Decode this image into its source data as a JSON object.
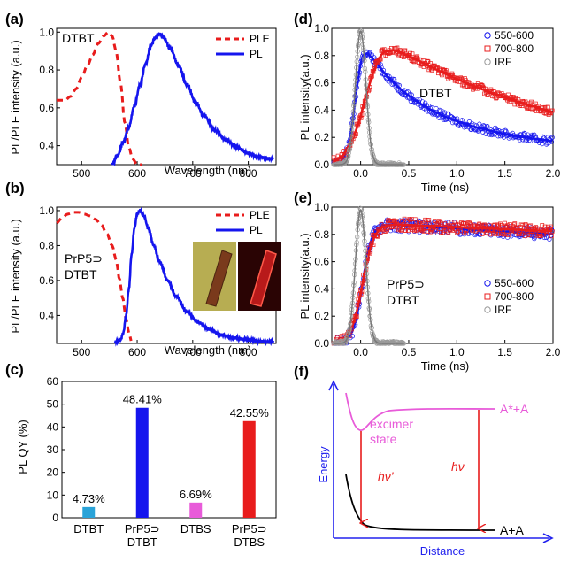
{
  "colors": {
    "blue": "#1515ee",
    "red": "#e81c1c",
    "gray": "#9a9a9a",
    "magenta": "#e85bd9",
    "cyan": "#2aa3d8",
    "axisblue": "#2222ee",
    "black": "#000000"
  },
  "chart_data": [
    {
      "id": "a",
      "panel_label": "(a)",
      "type": "line",
      "inner_label": [
        "DTBT"
      ],
      "xlabel": "Wavelength (nm)",
      "ylabel": "PL/PLE intensity (a.u.)",
      "xlim": [
        455,
        850
      ],
      "ylim": [
        0.3,
        1.02
      ],
      "xticks": [
        500,
        600,
        700,
        800
      ],
      "yticks": [
        0.4,
        0.6,
        0.8,
        1.0
      ],
      "legend_position": "top-right",
      "series": [
        {
          "name": "PLE",
          "style": "dashed",
          "color": "#e81c1c",
          "x": [
            455,
            470,
            480,
            490,
            500,
            510,
            520,
            530,
            540,
            548,
            555,
            562,
            570,
            578,
            585,
            592,
            600,
            610
          ],
          "y": [
            0.64,
            0.64,
            0.66,
            0.7,
            0.76,
            0.82,
            0.88,
            0.94,
            0.98,
            1.0,
            0.98,
            0.9,
            0.73,
            0.52,
            0.39,
            0.33,
            0.3,
            0.28
          ]
        },
        {
          "name": "PL",
          "style": "solid",
          "color": "#1515ee",
          "x": [
            555,
            565,
            575,
            585,
            595,
            605,
            615,
            625,
            632,
            640,
            648,
            660,
            675,
            690,
            705,
            720,
            740,
            760,
            780,
            800,
            820,
            845
          ],
          "y": [
            0.3,
            0.35,
            0.42,
            0.5,
            0.61,
            0.72,
            0.83,
            0.93,
            0.97,
            0.99,
            0.97,
            0.91,
            0.82,
            0.72,
            0.63,
            0.56,
            0.48,
            0.43,
            0.39,
            0.36,
            0.34,
            0.33
          ]
        }
      ]
    },
    {
      "id": "b",
      "panel_label": "(b)",
      "type": "line",
      "inner_label": [
        "PrP5⊃",
        "DTBT"
      ],
      "xlabel": "Wavelength (nm)",
      "ylabel": "PL/PLE intensity (a.u.)",
      "xlim": [
        455,
        850
      ],
      "ylim": [
        0.24,
        1.02
      ],
      "xticks": [
        500,
        600,
        700,
        800
      ],
      "yticks": [
        0.4,
        0.6,
        0.8,
        1.0
      ],
      "legend_position": "top-right",
      "series": [
        {
          "name": "PLE",
          "style": "dashed",
          "color": "#e81c1c",
          "x": [
            455,
            465,
            475,
            485,
            495,
            505,
            515,
            525,
            535,
            545,
            555,
            562,
            568,
            574,
            580,
            585,
            590
          ],
          "y": [
            0.93,
            0.96,
            0.98,
            0.99,
            0.99,
            0.98,
            0.97,
            0.95,
            0.92,
            0.87,
            0.8,
            0.72,
            0.61,
            0.5,
            0.38,
            0.3,
            0.25
          ]
        },
        {
          "name": "PL",
          "style": "solid",
          "color": "#1515ee",
          "x": [
            560,
            570,
            575,
            580,
            585,
            590,
            595,
            600,
            605,
            612,
            620,
            630,
            640,
            655,
            670,
            690,
            710,
            730,
            750,
            775,
            800,
            825,
            845
          ],
          "y": [
            0.25,
            0.26,
            0.3,
            0.4,
            0.55,
            0.75,
            0.9,
            0.98,
            1.0,
            0.97,
            0.9,
            0.8,
            0.71,
            0.6,
            0.51,
            0.42,
            0.36,
            0.32,
            0.29,
            0.27,
            0.26,
            0.25,
            0.25
          ]
        }
      ]
    },
    {
      "id": "c",
      "panel_label": "(c)",
      "type": "bar",
      "ylabel": "PL QY (%)",
      "ylim": [
        0,
        60
      ],
      "yticks": [
        0,
        10,
        20,
        30,
        40,
        50,
        60
      ],
      "categories": [
        [
          "DTBT"
        ],
        [
          "PrP5⊃",
          "DTBT"
        ],
        [
          "DTBS"
        ],
        [
          "PrP5⊃",
          "DTBS"
        ]
      ],
      "values": [
        4.73,
        48.41,
        6.69,
        42.55
      ],
      "value_labels": [
        "4.73%",
        "48.41%",
        "6.69%",
        "42.55%"
      ],
      "bar_colors": [
        "#2aa3d8",
        "#1515ee",
        "#e85bd9",
        "#e81c1c"
      ]
    },
    {
      "id": "d",
      "panel_label": "(d)",
      "type": "scatter",
      "inner_label": [
        "DTBT"
      ],
      "xlabel": "Time (ns)",
      "ylabel": "PL intensity(a.u.)",
      "xlim": [
        -0.3,
        2.0
      ],
      "ylim": [
        0,
        1.0
      ],
      "xticks": [
        0.0,
        0.5,
        1.0,
        1.5,
        2.0
      ],
      "yticks": [
        0.0,
        0.2,
        0.4,
        0.6,
        0.8,
        1.0
      ],
      "legend_position": "top-right",
      "series": [
        {
          "name": "550-600",
          "color": "#1515ee",
          "marker": "circle",
          "rise": 0.04,
          "decay": [
            0.62,
            0.52,
            0.38,
            2.6
          ],
          "peak": 0.02
        },
        {
          "name": "700-800",
          "color": "#e81c1c",
          "marker": "square",
          "rise": 0.09,
          "decay": [
            1.0,
            0.0,
            1.0,
            2.05
          ],
          "peak": 0.22
        },
        {
          "name": "IRF",
          "color": "#9a9a9a",
          "marker": "circle",
          "sigma": 0.055,
          "peak": 0.0
        }
      ]
    },
    {
      "id": "e",
      "panel_label": "(e)",
      "type": "scatter",
      "inner_label": [
        "PrP5⊃",
        "DTBT"
      ],
      "xlabel": "Time (ns)",
      "ylabel": "PL intensity(a.u.)",
      "xlim": [
        -0.3,
        2.0
      ],
      "ylim": [
        0,
        1.0
      ],
      "xticks": [
        0.0,
        0.5,
        1.0,
        1.5,
        2.0
      ],
      "yticks": [
        0.0,
        0.2,
        0.4,
        0.6,
        0.8,
        1.0
      ],
      "legend_position": "center-right",
      "series": [
        {
          "name": "550-600",
          "color": "#1515ee",
          "marker": "circle",
          "rise": 0.05,
          "decay": [
            1.0,
            0.0,
            1.0,
            20.0
          ],
          "peak": 0.12
        },
        {
          "name": "700-800",
          "color": "#e81c1c",
          "marker": "square",
          "rise": 0.06,
          "decay": [
            1.0,
            0.0,
            1.0,
            28.0
          ],
          "peak": 0.14
        },
        {
          "name": "IRF",
          "color": "#9a9a9a",
          "marker": "circle",
          "sigma": 0.055,
          "peak": 0.0
        }
      ]
    },
    {
      "id": "f",
      "panel_label": "(f)",
      "type": "diagram",
      "xlabel": "Distance",
      "ylabel": "Energy",
      "labels": {
        "upper": "A*+A",
        "lower": "A+A",
        "excimer": [
          "excimer",
          "state"
        ],
        "hv_prime": "hν'",
        "hv": "hν"
      }
    }
  ]
}
